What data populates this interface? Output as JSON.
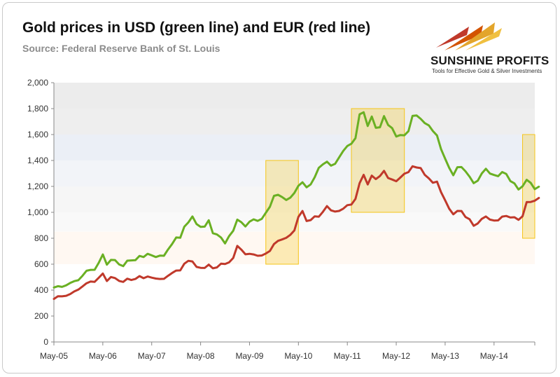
{
  "header": {
    "title": "Gold prices in USD (green line) and EUR (red line)",
    "subtitle": "Source: Federal Reserve Bank of St. Louis"
  },
  "logo": {
    "name": "SUNSHINE PROFITS",
    "tagline": "Tools for Effective Gold & Silver Investments",
    "colors": {
      "gold": "#e3a52b",
      "red": "#c0392b",
      "text": "#1a1a1a"
    }
  },
  "chart_data": {
    "type": "line",
    "title": "Gold prices in USD (green line) and EUR (red line)",
    "subtitle": "Source: Federal Reserve Bank of St. Louis",
    "xlabel": "",
    "ylabel": "",
    "x_range": [
      "2005-05",
      "2015-03"
    ],
    "ylim": [
      0,
      2000
    ],
    "yticks": [
      0,
      200,
      400,
      600,
      800,
      1000,
      1200,
      1400,
      1600,
      1800,
      2000
    ],
    "ytick_labels": [
      "0",
      "200",
      "400",
      "600",
      "800",
      "1,000",
      "1,200",
      "1,400",
      "1,600",
      "1,800",
      "2,000"
    ],
    "xtick_labels": [
      "May-05",
      "May-06",
      "May-07",
      "May-08",
      "May-09",
      "May-10",
      "May-11",
      "May-12",
      "May-13",
      "May-14"
    ],
    "xtick_dates": [
      "2005-05",
      "2006-05",
      "2007-05",
      "2008-05",
      "2009-05",
      "2010-05",
      "2011-05",
      "2012-05",
      "2013-05",
      "2014-05"
    ],
    "grid": false,
    "background_bands": [
      {
        "from": 1800,
        "to": 2000,
        "color": "#ececec"
      },
      {
        "from": 1600,
        "to": 1800,
        "color": "#eeeeee"
      },
      {
        "from": 1400,
        "to": 1600,
        "color": "#ebeff6"
      },
      {
        "from": 1200,
        "to": 1400,
        "color": "#f2f4f8"
      },
      {
        "from": 1000,
        "to": 1200,
        "color": "#f6f6f6"
      },
      {
        "from": 850,
        "to": 1000,
        "color": "#f9f9f9"
      },
      {
        "from": 600,
        "to": 850,
        "color": "#fff8f2"
      }
    ],
    "highlights": [
      {
        "x0": "2009-09",
        "x1": "2010-05",
        "y0": 600,
        "y1": 1400
      },
      {
        "x0": "2011-06",
        "x1": "2012-07",
        "y0": 1000,
        "y1": 1800
      },
      {
        "x0": "2014-12",
        "x1": "2015-03",
        "y0": 800,
        "y1": 1600
      }
    ],
    "highlight_color": "#f5c518",
    "series": [
      {
        "name": "USD",
        "color": "#6ab023",
        "points": [
          [
            "2005-05",
            420
          ],
          [
            "2005-06",
            430
          ],
          [
            "2005-07",
            425
          ],
          [
            "2005-08",
            437
          ],
          [
            "2005-09",
            455
          ],
          [
            "2005-10",
            469
          ],
          [
            "2005-11",
            476
          ],
          [
            "2005-12",
            510
          ],
          [
            "2006-01",
            549
          ],
          [
            "2006-02",
            556
          ],
          [
            "2006-03",
            557
          ],
          [
            "2006-04",
            610
          ],
          [
            "2006-05",
            675
          ],
          [
            "2006-06",
            596
          ],
          [
            "2006-07",
            633
          ],
          [
            "2006-08",
            632
          ],
          [
            "2006-09",
            598
          ],
          [
            "2006-10",
            585
          ],
          [
            "2006-11",
            627
          ],
          [
            "2006-12",
            629
          ],
          [
            "2007-01",
            631
          ],
          [
            "2007-02",
            664
          ],
          [
            "2007-03",
            655
          ],
          [
            "2007-04",
            680
          ],
          [
            "2007-05",
            668
          ],
          [
            "2007-06",
            655
          ],
          [
            "2007-07",
            666
          ],
          [
            "2007-08",
            665
          ],
          [
            "2007-09",
            713
          ],
          [
            "2007-10",
            755
          ],
          [
            "2007-11",
            806
          ],
          [
            "2007-12",
            804
          ],
          [
            "2008-01",
            889
          ],
          [
            "2008-02",
            922
          ],
          [
            "2008-03",
            968
          ],
          [
            "2008-04",
            909
          ],
          [
            "2008-05",
            888
          ],
          [
            "2008-06",
            890
          ],
          [
            "2008-07",
            939
          ],
          [
            "2008-08",
            839
          ],
          [
            "2008-09",
            829
          ],
          [
            "2008-10",
            806
          ],
          [
            "2008-11",
            760
          ],
          [
            "2008-12",
            817
          ],
          [
            "2009-01",
            858
          ],
          [
            "2009-02",
            944
          ],
          [
            "2009-03",
            924
          ],
          [
            "2009-04",
            891
          ],
          [
            "2009-05",
            928
          ],
          [
            "2009-06",
            946
          ],
          [
            "2009-07",
            934
          ],
          [
            "2009-08",
            949
          ],
          [
            "2009-09",
            996
          ],
          [
            "2009-10",
            1043
          ],
          [
            "2009-11",
            1127
          ],
          [
            "2009-12",
            1135
          ],
          [
            "2010-01",
            1118
          ],
          [
            "2010-02",
            1095
          ],
          [
            "2010-03",
            1113
          ],
          [
            "2010-04",
            1149
          ],
          [
            "2010-05",
            1205
          ],
          [
            "2010-06",
            1232
          ],
          [
            "2010-07",
            1193
          ],
          [
            "2010-08",
            1215
          ],
          [
            "2010-09",
            1271
          ],
          [
            "2010-10",
            1343
          ],
          [
            "2010-11",
            1370
          ],
          [
            "2010-12",
            1391
          ],
          [
            "2011-01",
            1360
          ],
          [
            "2011-02",
            1374
          ],
          [
            "2011-03",
            1424
          ],
          [
            "2011-04",
            1474
          ],
          [
            "2011-05",
            1512
          ],
          [
            "2011-06",
            1529
          ],
          [
            "2011-07",
            1572
          ],
          [
            "2011-08",
            1756
          ],
          [
            "2011-09",
            1772
          ],
          [
            "2011-10",
            1666
          ],
          [
            "2011-11",
            1739
          ],
          [
            "2011-12",
            1652
          ],
          [
            "2012-01",
            1656
          ],
          [
            "2012-02",
            1742
          ],
          [
            "2012-03",
            1674
          ],
          [
            "2012-04",
            1650
          ],
          [
            "2012-05",
            1585
          ],
          [
            "2012-06",
            1596
          ],
          [
            "2012-07",
            1594
          ],
          [
            "2012-08",
            1626
          ],
          [
            "2012-09",
            1744
          ],
          [
            "2012-10",
            1747
          ],
          [
            "2012-11",
            1721
          ],
          [
            "2012-12",
            1688
          ],
          [
            "2013-01",
            1671
          ],
          [
            "2013-02",
            1627
          ],
          [
            "2013-03",
            1593
          ],
          [
            "2013-04",
            1487
          ],
          [
            "2013-05",
            1414
          ],
          [
            "2013-06",
            1343
          ],
          [
            "2013-07",
            1286
          ],
          [
            "2013-08",
            1348
          ],
          [
            "2013-09",
            1349
          ],
          [
            "2013-10",
            1316
          ],
          [
            "2013-11",
            1275
          ],
          [
            "2013-12",
            1225
          ],
          [
            "2014-01",
            1244
          ],
          [
            "2014-02",
            1300
          ],
          [
            "2014-03",
            1336
          ],
          [
            "2014-04",
            1299
          ],
          [
            "2014-05",
            1288
          ],
          [
            "2014-06",
            1279
          ],
          [
            "2014-07",
            1311
          ],
          [
            "2014-08",
            1296
          ],
          [
            "2014-09",
            1241
          ],
          [
            "2014-10",
            1223
          ],
          [
            "2014-11",
            1176
          ],
          [
            "2014-12",
            1201
          ],
          [
            "2015-01",
            1251
          ],
          [
            "2015-02",
            1227
          ],
          [
            "2015-03",
            1179
          ],
          [
            "2015-04",
            1198
          ]
        ]
      },
      {
        "name": "EUR",
        "color": "#c0392b",
        "points": [
          [
            "2005-05",
            332
          ],
          [
            "2005-06",
            353
          ],
          [
            "2005-07",
            352
          ],
          [
            "2005-08",
            356
          ],
          [
            "2005-09",
            370
          ],
          [
            "2005-10",
            390
          ],
          [
            "2005-11",
            404
          ],
          [
            "2005-12",
            428
          ],
          [
            "2006-01",
            453
          ],
          [
            "2006-02",
            466
          ],
          [
            "2006-03",
            464
          ],
          [
            "2006-04",
            495
          ],
          [
            "2006-05",
            528
          ],
          [
            "2006-06",
            470
          ],
          [
            "2006-07",
            501
          ],
          [
            "2006-08",
            493
          ],
          [
            "2006-09",
            471
          ],
          [
            "2006-10",
            463
          ],
          [
            "2006-11",
            488
          ],
          [
            "2006-12",
            478
          ],
          [
            "2007-01",
            486
          ],
          [
            "2007-02",
            508
          ],
          [
            "2007-03",
            492
          ],
          [
            "2007-04",
            505
          ],
          [
            "2007-05",
            496
          ],
          [
            "2007-06",
            489
          ],
          [
            "2007-07",
            486
          ],
          [
            "2007-08",
            487
          ],
          [
            "2007-09",
            510
          ],
          [
            "2007-10",
            532
          ],
          [
            "2007-11",
            551
          ],
          [
            "2007-12",
            552
          ],
          [
            "2008-01",
            604
          ],
          [
            "2008-02",
            626
          ],
          [
            "2008-03",
            621
          ],
          [
            "2008-04",
            579
          ],
          [
            "2008-05",
            572
          ],
          [
            "2008-06",
            571
          ],
          [
            "2008-07",
            597
          ],
          [
            "2008-08",
            568
          ],
          [
            "2008-09",
            575
          ],
          [
            "2008-10",
            604
          ],
          [
            "2008-11",
            601
          ],
          [
            "2008-12",
            614
          ],
          [
            "2009-01",
            648
          ],
          [
            "2009-02",
            741
          ],
          [
            "2009-03",
            712
          ],
          [
            "2009-04",
            676
          ],
          [
            "2009-05",
            680
          ],
          [
            "2009-06",
            675
          ],
          [
            "2009-07",
            665
          ],
          [
            "2009-08",
            667
          ],
          [
            "2009-09",
            682
          ],
          [
            "2009-10",
            702
          ],
          [
            "2009-11",
            755
          ],
          [
            "2009-12",
            780
          ],
          [
            "2010-01",
            791
          ],
          [
            "2010-02",
            803
          ],
          [
            "2010-03",
            826
          ],
          [
            "2010-04",
            860
          ],
          [
            "2010-05",
            965
          ],
          [
            "2010-06",
            1010
          ],
          [
            "2010-07",
            933
          ],
          [
            "2010-08",
            940
          ],
          [
            "2010-09",
            969
          ],
          [
            "2010-10",
            966
          ],
          [
            "2010-11",
            1004
          ],
          [
            "2010-12",
            1048
          ],
          [
            "2011-01",
            1015
          ],
          [
            "2011-02",
            1006
          ],
          [
            "2011-03",
            1011
          ],
          [
            "2011-04",
            1028
          ],
          [
            "2011-05",
            1055
          ],
          [
            "2011-06",
            1060
          ],
          [
            "2011-07",
            1103
          ],
          [
            "2011-08",
            1225
          ],
          [
            "2011-09",
            1289
          ],
          [
            "2011-10",
            1215
          ],
          [
            "2011-11",
            1283
          ],
          [
            "2011-12",
            1256
          ],
          [
            "2012-01",
            1280
          ],
          [
            "2012-02",
            1320
          ],
          [
            "2012-03",
            1265
          ],
          [
            "2012-04",
            1253
          ],
          [
            "2012-05",
            1240
          ],
          [
            "2012-06",
            1268
          ],
          [
            "2012-07",
            1298
          ],
          [
            "2012-08",
            1310
          ],
          [
            "2012-09",
            1355
          ],
          [
            "2012-10",
            1346
          ],
          [
            "2012-11",
            1341
          ],
          [
            "2012-12",
            1289
          ],
          [
            "2013-01",
            1262
          ],
          [
            "2013-02",
            1228
          ],
          [
            "2013-03",
            1237
          ],
          [
            "2013-04",
            1155
          ],
          [
            "2013-05",
            1093
          ],
          [
            "2013-06",
            1028
          ],
          [
            "2013-07",
            985
          ],
          [
            "2013-08",
            1011
          ],
          [
            "2013-09",
            1010
          ],
          [
            "2013-10",
            964
          ],
          [
            "2013-11",
            947
          ],
          [
            "2013-12",
            896
          ],
          [
            "2014-01",
            914
          ],
          [
            "2014-02",
            950
          ],
          [
            "2014-03",
            968
          ],
          [
            "2014-04",
            944
          ],
          [
            "2014-05",
            937
          ],
          [
            "2014-06",
            938
          ],
          [
            "2014-07",
            967
          ],
          [
            "2014-08",
            972
          ],
          [
            "2014-09",
            960
          ],
          [
            "2014-10",
            962
          ],
          [
            "2014-11",
            942
          ],
          [
            "2014-12",
            970
          ],
          [
            "2015-01",
            1079
          ],
          [
            "2015-02",
            1080
          ],
          [
            "2015-03",
            1090
          ],
          [
            "2015-04",
            1111
          ]
        ]
      }
    ]
  }
}
